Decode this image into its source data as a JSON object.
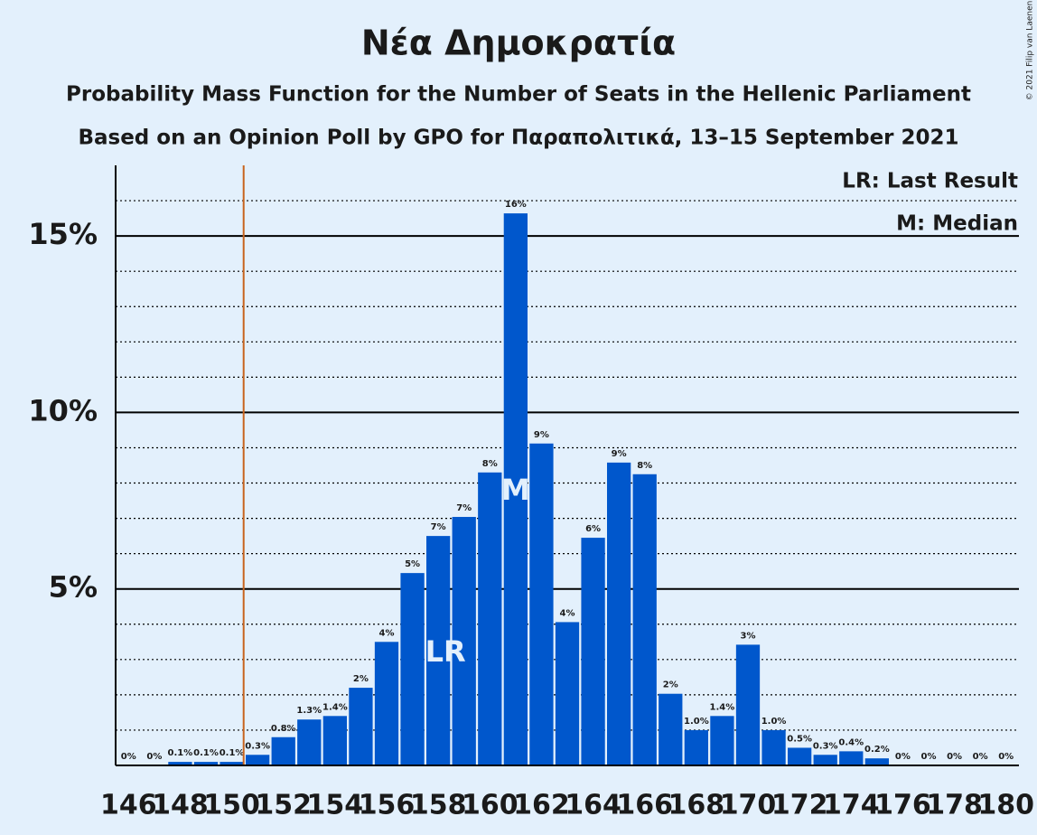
{
  "chart_data": {
    "type": "bar",
    "title": "Νέα Δημοκρατία",
    "subtitle": "Probability Mass Function for the Number of Seats in the Hellenic Parliament",
    "subtitle2": "Based on an Opinion Poll by GPO for Παραπολιτικά, 13–15 September 2021",
    "legend_notes": [
      "LR: Last Result",
      "M: Median"
    ],
    "copyright": "© 2021 Filip van Laenen",
    "categories": [
      146,
      null,
      148,
      null,
      150,
      null,
      152,
      null,
      154,
      null,
      156,
      null,
      158,
      null,
      160,
      null,
      162,
      null,
      164,
      null,
      166,
      null,
      168,
      null,
      170,
      null,
      172,
      null,
      174,
      null,
      176,
      null,
      178,
      null,
      180
    ],
    "values": [
      0,
      0,
      0.1,
      0.1,
      0.1,
      0.3,
      0.8,
      1.3,
      1.4,
      2.2,
      3.5,
      5.45,
      6.5,
      7.04,
      8.3,
      15.64,
      9.12,
      4.06,
      6.45,
      8.58,
      8.25,
      2.03,
      1.0,
      1.4,
      3.42,
      1.0,
      0.5,
      0.3,
      0.4,
      0.2,
      0,
      0,
      0,
      0,
      0
    ],
    "value_labels": [
      "0%",
      "0%",
      "0.1%",
      "0.1%",
      "0.1%",
      "0.3%",
      "0.8%",
      "1.3%",
      "1.4%",
      "2%",
      "4%",
      "5%",
      "7%",
      "7%",
      "8%",
      "16%",
      "9%",
      "4%",
      "6%",
      "9%",
      "8%",
      "2%",
      "1.0%",
      "1.4%",
      "3%",
      "1.0%",
      "0.5%",
      "0.3%",
      "0.4%",
      "0.2%",
      "0%",
      "0%",
      "0%",
      "0%",
      "0%"
    ],
    "color": "#0057cc",
    "annotations": [
      {
        "text": "LR",
        "index": 12
      },
      {
        "text": "M",
        "index": 15
      }
    ],
    "majority_line_index": 5,
    "majority_line_color": "#c8641e",
    "ylim": [
      0,
      17
    ],
    "yticks": [
      {
        "value": 5,
        "label": "5%"
      },
      {
        "value": 10,
        "label": "10%"
      },
      {
        "value": 15,
        "label": "15%"
      }
    ],
    "minor_yticks": [
      1,
      2,
      3,
      4,
      6,
      7,
      8,
      9,
      11,
      12,
      13,
      14,
      16
    ],
    "grid": true
  }
}
